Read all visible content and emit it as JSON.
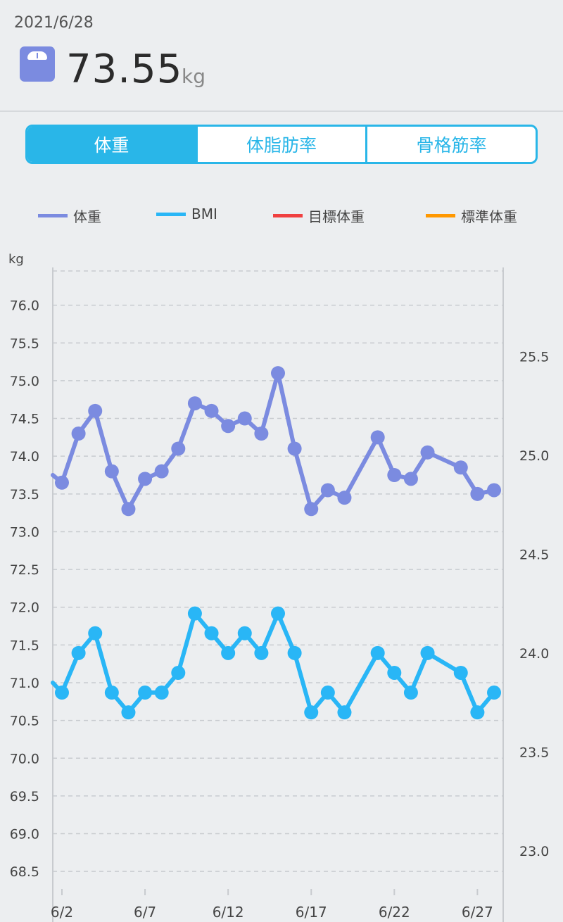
{
  "header": {
    "date": "2021/6/28",
    "weight_value": "73.55",
    "weight_unit": "kg"
  },
  "tabs": [
    {
      "label": "体重",
      "active": true
    },
    {
      "label": "体脂肪率",
      "active": false
    },
    {
      "label": "骨格筋率",
      "active": false
    }
  ],
  "legend": [
    {
      "label": "体重",
      "color": "#7b8be0"
    },
    {
      "label": "BMI",
      "color": "#29b6f6"
    },
    {
      "label": "目標体重",
      "color": "#f04040"
    },
    {
      "label": "標準体重",
      "color": "#ff9800"
    }
  ],
  "chart_data": {
    "type": "line",
    "ylabel": "kg",
    "left_axis": {
      "range": [
        68.25,
        76.5
      ],
      "ticks": [
        "68.5",
        "69.0",
        "69.5",
        "70.0",
        "70.5",
        "71.0",
        "71.5",
        "72.0",
        "72.5",
        "73.0",
        "73.5",
        "74.0",
        "74.5",
        "75.0",
        "75.5",
        "76.0"
      ]
    },
    "right_axis": {
      "range": [
        22.8,
        25.95
      ],
      "ticks": [
        "23.0",
        "23.5",
        "24.0",
        "24.5",
        "25.0",
        "25.5"
      ]
    },
    "x_ticks": [
      {
        "day": 2,
        "label": "6/2"
      },
      {
        "day": 7,
        "label": "6/7"
      },
      {
        "day": 12,
        "label": "6/12"
      },
      {
        "day": 17,
        "label": "6/17"
      },
      {
        "day": 22,
        "label": "6/22"
      },
      {
        "day": 27,
        "label": "6/27"
      }
    ],
    "x_range": [
      1.45,
      28.55
    ],
    "grid": true,
    "series": [
      {
        "name": "体重",
        "axis": "left",
        "color": "#7b8be0",
        "line_start": {
          "day": 1.45,
          "value": 73.75
        },
        "points": [
          {
            "day": 2,
            "value": 73.65
          },
          {
            "day": 3,
            "value": 74.3
          },
          {
            "day": 4,
            "value": 74.6
          },
          {
            "day": 5,
            "value": 73.8
          },
          {
            "day": 6,
            "value": 73.3
          },
          {
            "day": 7,
            "value": 73.7
          },
          {
            "day": 8,
            "value": 73.8
          },
          {
            "day": 9,
            "value": 74.1
          },
          {
            "day": 10,
            "value": 74.7
          },
          {
            "day": 11,
            "value": 74.6
          },
          {
            "day": 12,
            "value": 74.4
          },
          {
            "day": 13,
            "value": 74.5
          },
          {
            "day": 14,
            "value": 74.3
          },
          {
            "day": 15,
            "value": 75.1
          },
          {
            "day": 16,
            "value": 74.1
          },
          {
            "day": 17,
            "value": 73.3
          },
          {
            "day": 18,
            "value": 73.55
          },
          {
            "day": 19,
            "value": 73.45
          },
          {
            "day": 21,
            "value": 74.25
          },
          {
            "day": 22,
            "value": 73.75
          },
          {
            "day": 23,
            "value": 73.7
          },
          {
            "day": 24,
            "value": 74.05
          },
          {
            "day": 26,
            "value": 73.85
          },
          {
            "day": 27,
            "value": 73.5
          },
          {
            "day": 28,
            "value": 73.55
          }
        ]
      },
      {
        "name": "BMI",
        "axis": "right",
        "color": "#29b6f6",
        "line_start": {
          "day": 1.45,
          "value": 23.85
        },
        "points": [
          {
            "day": 2,
            "value": 23.8
          },
          {
            "day": 3,
            "value": 24.0
          },
          {
            "day": 4,
            "value": 24.1
          },
          {
            "day": 5,
            "value": 23.8
          },
          {
            "day": 6,
            "value": 23.7
          },
          {
            "day": 7,
            "value": 23.8
          },
          {
            "day": 8,
            "value": 23.8
          },
          {
            "day": 9,
            "value": 23.9
          },
          {
            "day": 10,
            "value": 24.2
          },
          {
            "day": 11,
            "value": 24.1
          },
          {
            "day": 12,
            "value": 24.0
          },
          {
            "day": 13,
            "value": 24.1
          },
          {
            "day": 14,
            "value": 24.0
          },
          {
            "day": 15,
            "value": 24.2
          },
          {
            "day": 16,
            "value": 24.0
          },
          {
            "day": 17,
            "value": 23.7
          },
          {
            "day": 18,
            "value": 23.8
          },
          {
            "day": 19,
            "value": 23.7
          },
          {
            "day": 21,
            "value": 24.0
          },
          {
            "day": 22,
            "value": 23.9
          },
          {
            "day": 23,
            "value": 23.8
          },
          {
            "day": 24,
            "value": 24.0
          },
          {
            "day": 26,
            "value": 23.9
          },
          {
            "day": 27,
            "value": 23.7
          },
          {
            "day": 28,
            "value": 23.8
          }
        ]
      }
    ]
  }
}
